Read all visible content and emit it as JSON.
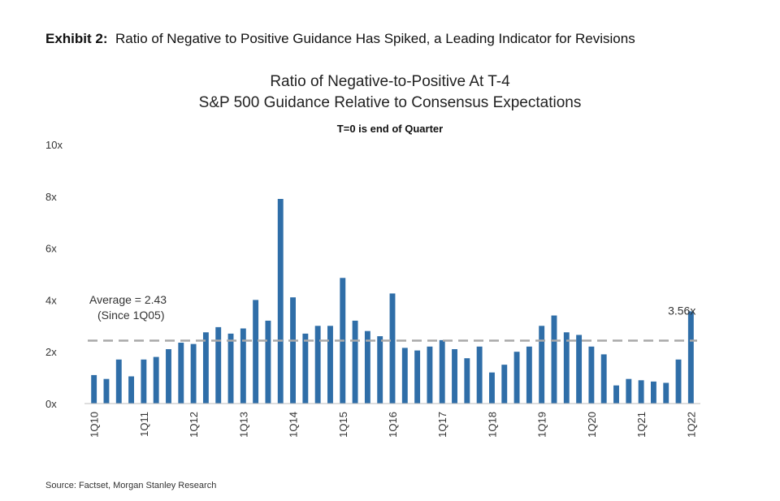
{
  "exhibit": {
    "prefix": "Exhibit 2:",
    "text": "Ratio of Negative to Positive Guidance Has Spiked, a Leading Indicator for Revisions"
  },
  "source": "Source: Factset, Morgan Stanley Research",
  "chart_data": {
    "type": "bar",
    "title": "Ratio of Negative-to-Positive  At T-4",
    "title_line2": "S&P 500 Guidance Relative to Consensus  Expectations",
    "subtitle": "T=0 is end of Quarter",
    "xlabel": "",
    "ylabel": "",
    "ylim": [
      0,
      10
    ],
    "y_ticks": [
      0,
      2,
      4,
      6,
      8,
      10
    ],
    "y_tick_labels": [
      "0x",
      "2x",
      "4x",
      "6x",
      "8x",
      "10x"
    ],
    "x_tick_labels": [
      "1Q10",
      "1Q11",
      "1Q12",
      "1Q13",
      "1Q14",
      "1Q15",
      "1Q16",
      "1Q17",
      "1Q18",
      "1Q19",
      "1Q20",
      "1Q21",
      "1Q22"
    ],
    "categories": [
      "1Q10",
      "2Q10",
      "3Q10",
      "4Q10",
      "1Q11",
      "2Q11",
      "3Q11",
      "4Q11",
      "1Q12",
      "2Q12",
      "3Q12",
      "4Q12",
      "1Q13",
      "2Q13",
      "3Q13",
      "4Q13",
      "1Q14",
      "2Q14",
      "3Q14",
      "4Q14",
      "1Q15",
      "2Q15",
      "3Q15",
      "4Q15",
      "1Q16",
      "2Q16",
      "3Q16",
      "4Q16",
      "1Q17",
      "2Q17",
      "3Q17",
      "4Q17",
      "1Q18",
      "2Q18",
      "3Q18",
      "4Q18",
      "1Q19",
      "2Q19",
      "3Q19",
      "4Q19",
      "1Q20",
      "2Q20",
      "3Q20",
      "4Q20",
      "1Q21",
      "2Q21",
      "3Q21",
      "4Q21",
      "1Q22"
    ],
    "values": [
      1.1,
      0.95,
      1.7,
      1.05,
      1.7,
      1.8,
      2.1,
      2.35,
      2.3,
      2.75,
      2.95,
      2.7,
      2.9,
      4.0,
      3.2,
      7.9,
      4.1,
      2.7,
      3.0,
      3.0,
      4.85,
      3.2,
      2.8,
      2.6,
      4.25,
      2.15,
      2.05,
      2.2,
      2.45,
      2.1,
      1.75,
      2.2,
      1.2,
      1.5,
      2.0,
      2.2,
      3.0,
      3.4,
      2.75,
      2.65,
      2.2,
      1.9,
      0.7,
      0.95,
      0.9,
      0.85,
      0.8,
      1.7,
      3.56
    ],
    "average": {
      "value": 2.43,
      "label_line1": "Average = 2.43",
      "label_line2": "(Since 1Q05)"
    },
    "data_label": {
      "category": "1Q22",
      "text": "3.56x"
    },
    "grid": false,
    "legend": "none",
    "colors": {
      "bar": "#2f6ea8",
      "average_line": "#a9a9a9",
      "axis": "#bdbdbd"
    }
  }
}
